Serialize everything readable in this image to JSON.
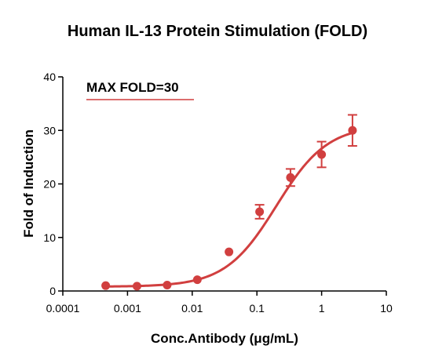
{
  "colors": {
    "series": "#d13f3f",
    "axis": "#000000"
  },
  "chart_data": {
    "type": "scatter",
    "title": "Human IL-13 Protein Stimulation (FOLD)",
    "xlabel": "Conc.Antibody (μg/mL)",
    "ylabel": "Fold of Induction",
    "x_scale": "log",
    "xlim": [
      0.0001,
      10
    ],
    "ylim": [
      0,
      40
    ],
    "x_ticks": [
      0.0001,
      0.001,
      0.01,
      0.1,
      1,
      10
    ],
    "x_tick_labels": [
      "0.0001",
      "0.001",
      "0.01",
      "0.1",
      "1",
      "10"
    ],
    "y_ticks": [
      0,
      10,
      20,
      30,
      40
    ],
    "y_tick_labels": [
      "0",
      "10",
      "20",
      "30",
      "40"
    ],
    "grid": false,
    "annotation": "MAX FOLD=30",
    "series": [
      {
        "x": [
          0.00046,
          0.0014,
          0.0041,
          0.012,
          0.037,
          0.11,
          0.33,
          1.0,
          3.0
        ],
        "y": [
          1.0,
          0.9,
          1.1,
          2.1,
          7.3,
          14.8,
          21.2,
          25.5,
          30.0
        ],
        "error": [
          0,
          0,
          0,
          0,
          0,
          1.3,
          1.6,
          2.4,
          2.9
        ],
        "fit": {
          "model": "four-parameter logistic",
          "bottom": 0.8,
          "top": 31,
          "ec50": 0.2,
          "hill": 1.1
        }
      }
    ]
  }
}
